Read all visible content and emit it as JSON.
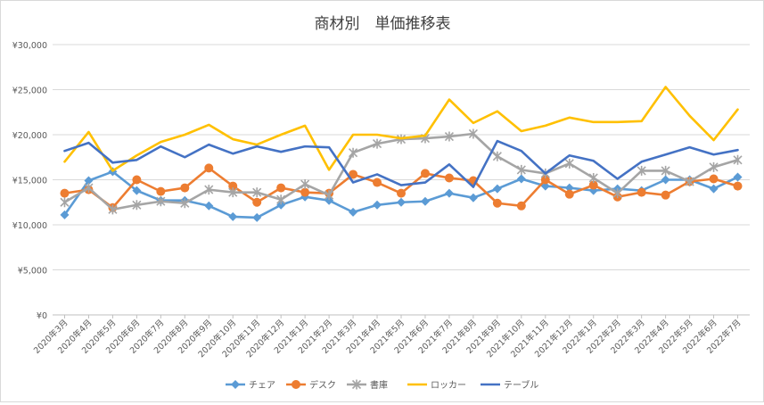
{
  "chart_data": {
    "type": "line",
    "title": "商材別　単価推移表",
    "xlabel": "",
    "ylabel": "",
    "ylim": [
      0,
      30000
    ],
    "yticks": [
      0,
      5000,
      10000,
      15000,
      20000,
      25000,
      30000
    ],
    "ytick_labels": [
      "¥0",
      "¥5,000",
      "¥10,000",
      "¥15,000",
      "¥20,000",
      "¥25,000",
      "¥30,000"
    ],
    "grid": true,
    "legend_position": "bottom",
    "categories": [
      "2020年3月",
      "2020年4月",
      "2020年5月",
      "2020年6月",
      "2020年7月",
      "2020年8月",
      "2020年9月",
      "2020年10月",
      "2020年11月",
      "2020年12月",
      "2021年1月",
      "2021年2月",
      "2021年3月",
      "2021年4月",
      "2021年5月",
      "2021年6月",
      "2021年7月",
      "2021年8月",
      "2021年9月",
      "2021年10月",
      "2021年11月",
      "2021年12月",
      "2022年1月",
      "2022年2月",
      "2022年3月",
      "2022年4月",
      "2022年5月",
      "2022年6月",
      "2022年7月"
    ],
    "series": [
      {
        "name": "チェア",
        "color": "#5B9BD5",
        "marker": "diamond",
        "values": [
          11100,
          14900,
          15900,
          13800,
          12700,
          12700,
          12100,
          10900,
          10800,
          12200,
          13100,
          12700,
          11400,
          12200,
          12500,
          12600,
          13500,
          13000,
          14000,
          15100,
          14300,
          14100,
          13800,
          14000,
          13800,
          15000,
          15000,
          14000,
          15300
        ]
      },
      {
        "name": "デスク",
        "color": "#ED7D31",
        "marker": "circle",
        "values": [
          13500,
          13900,
          11900,
          15000,
          13700,
          14100,
          16300,
          14300,
          12500,
          14100,
          13600,
          13500,
          15600,
          14700,
          13500,
          15700,
          15200,
          14900,
          12400,
          12100,
          15000,
          13400,
          14400,
          13100,
          13600,
          13300,
          14800,
          15100,
          14300
        ]
      },
      {
        "name": "書庫",
        "color": "#A5A5A5",
        "marker": "star",
        "values": [
          12500,
          14100,
          11700,
          12200,
          12600,
          12400,
          13900,
          13600,
          13600,
          12800,
          14500,
          13300,
          18000,
          19000,
          19500,
          19600,
          19800,
          20100,
          17600,
          16100,
          15700,
          16800,
          15200,
          13500,
          16000,
          16000,
          14800,
          16400,
          17200
        ]
      },
      {
        "name": "ロッカー",
        "color": "#FFC000",
        "marker": "none",
        "values": [
          17000,
          20300,
          16000,
          17700,
          19200,
          20000,
          21100,
          19500,
          18900,
          20000,
          21000,
          16100,
          20000,
          20000,
          19600,
          19900,
          23900,
          21300,
          22600,
          20400,
          21000,
          21900,
          21400,
          21400,
          21500,
          25300,
          22100,
          19400,
          22800
        ]
      },
      {
        "name": "テーブル",
        "color": "#4472C4",
        "marker": "none",
        "values": [
          18200,
          19100,
          16900,
          17200,
          18700,
          17500,
          18900,
          17900,
          18700,
          18100,
          18700,
          18600,
          14700,
          15600,
          14400,
          14700,
          16700,
          14200,
          19300,
          18200,
          15700,
          17700,
          17100,
          15100,
          17000,
          17800,
          18600,
          17800,
          18300
        ]
      }
    ]
  }
}
